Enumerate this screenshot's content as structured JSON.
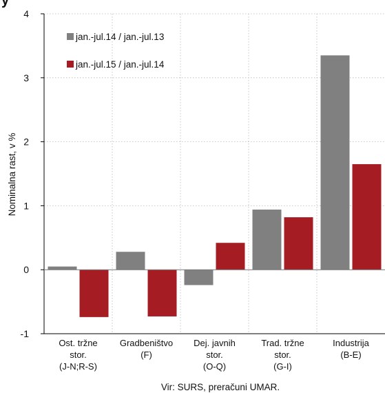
{
  "chart_data": {
    "type": "bar",
    "categories": [
      [
        "Ost. tržne",
        "stor.",
        "(J-N;R-S)"
      ],
      [
        "Gradbeništvo",
        "(F)"
      ],
      [
        "Dej. javnih",
        "stor.",
        "(O-Q)"
      ],
      [
        "Trad. tržne",
        "stor.",
        "(G-I)"
      ],
      [
        "Industrija",
        "(B-E)"
      ]
    ],
    "series": [
      {
        "name": "jan.-jul.14 / jan.-jul.13",
        "color": "#808080",
        "values": [
          0.05,
          0.28,
          -0.24,
          0.94,
          3.35
        ]
      },
      {
        "name": "jan.-jul.15 / jan.-jul.14",
        "color": "#a51d23",
        "values": [
          -0.74,
          -0.73,
          0.42,
          0.82,
          1.65
        ]
      }
    ],
    "ylabel": "Nominalna rast, v %",
    "ylim": [
      -1,
      4
    ],
    "yticks": [
      -1,
      0,
      1,
      2,
      3,
      4
    ],
    "grid": true,
    "legend_position": "top-left",
    "source": "Vir: SURS, preračuni UMAR."
  }
}
